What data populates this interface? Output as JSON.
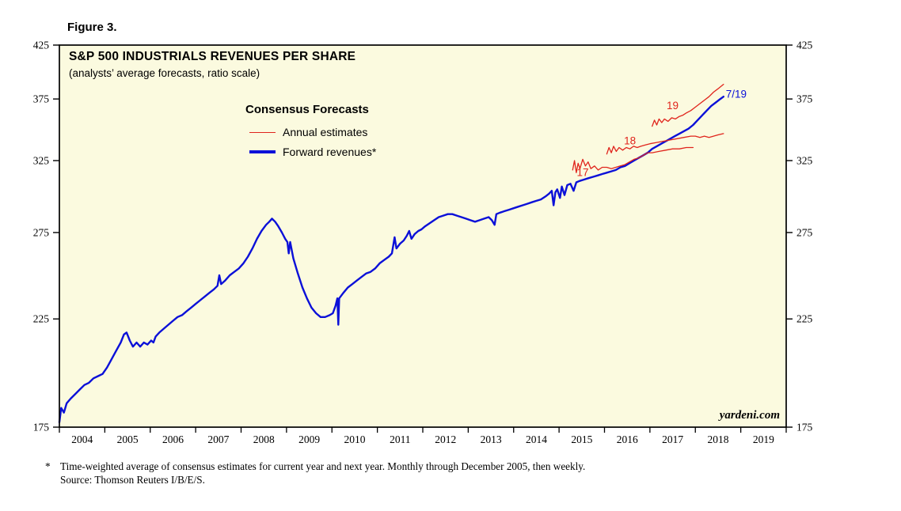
{
  "figure_label": "Figure 3.",
  "chart": {
    "title": "S&P 500 INDUSTRIALS REVENUES PER SHARE",
    "subtitle": "(analysts’ average forecasts, ratio scale)",
    "background": "#fbfadf",
    "colors": {
      "annual_estimates": "#e0241c",
      "forward_revenues": "#0b10d8"
    },
    "legend": {
      "title": "Consensus Forecasts",
      "items": [
        {
          "label": "Annual estimates"
        },
        {
          "label": "Forward revenues*"
        }
      ]
    },
    "watermark": "yardeni.com"
  },
  "chart_data": {
    "type": "line",
    "title": "S&P 500 INDUSTRIALS REVENUES PER SHARE",
    "subtitle": "(analysts’ average forecasts, ratio scale)",
    "x_axis": {
      "range": [
        2004,
        2020
      ],
      "tick_labels": [
        "2004",
        "2005",
        "2006",
        "2007",
        "2008",
        "2009",
        "2010",
        "2011",
        "2012",
        "2013",
        "2014",
        "2015",
        "2016",
        "2017",
        "2018",
        "2019"
      ]
    },
    "y_axis": {
      "scale": "log (ratio scale)",
      "range": [
        175,
        425
      ],
      "ticks": [
        425,
        375,
        325,
        275,
        225,
        175
      ],
      "sides": [
        "left",
        "right"
      ]
    },
    "series": [
      {
        "id": "forward-revenues",
        "name": "Forward revenues*",
        "color": "#0b10d8",
        "stroke_width": 2.4,
        "points": [
          [
            2004.0,
            177
          ],
          [
            2004.04,
            183
          ],
          [
            2004.1,
            181
          ],
          [
            2004.16,
            185
          ],
          [
            2004.25,
            187
          ],
          [
            2004.35,
            189
          ],
          [
            2004.45,
            191
          ],
          [
            2004.55,
            193
          ],
          [
            2004.65,
            194
          ],
          [
            2004.75,
            196
          ],
          [
            2004.85,
            197
          ],
          [
            2004.95,
            198
          ],
          [
            2005.05,
            201
          ],
          [
            2005.15,
            205
          ],
          [
            2005.25,
            209
          ],
          [
            2005.35,
            213
          ],
          [
            2005.42,
            217
          ],
          [
            2005.48,
            218
          ],
          [
            2005.55,
            214
          ],
          [
            2005.62,
            211
          ],
          [
            2005.7,
            213
          ],
          [
            2005.78,
            211
          ],
          [
            2005.86,
            213
          ],
          [
            2005.94,
            212
          ],
          [
            2006.02,
            214
          ],
          [
            2006.07,
            213
          ],
          [
            2006.12,
            216
          ],
          [
            2006.2,
            218
          ],
          [
            2006.3,
            220
          ],
          [
            2006.4,
            222
          ],
          [
            2006.5,
            224
          ],
          [
            2006.6,
            226
          ],
          [
            2006.7,
            227
          ],
          [
            2006.8,
            229
          ],
          [
            2006.9,
            231
          ],
          [
            2007.0,
            233
          ],
          [
            2007.1,
            235
          ],
          [
            2007.2,
            237
          ],
          [
            2007.3,
            239
          ],
          [
            2007.4,
            241
          ],
          [
            2007.48,
            243
          ],
          [
            2007.52,
            249
          ],
          [
            2007.56,
            244
          ],
          [
            2007.65,
            246
          ],
          [
            2007.75,
            249
          ],
          [
            2007.85,
            251
          ],
          [
            2007.95,
            253
          ],
          [
            2008.05,
            256
          ],
          [
            2008.15,
            260
          ],
          [
            2008.25,
            265
          ],
          [
            2008.35,
            271
          ],
          [
            2008.45,
            276
          ],
          [
            2008.55,
            280
          ],
          [
            2008.62,
            282
          ],
          [
            2008.68,
            284
          ],
          [
            2008.75,
            282
          ],
          [
            2008.82,
            279
          ],
          [
            2008.9,
            275
          ],
          [
            2008.97,
            271
          ],
          [
            2009.02,
            269
          ],
          [
            2009.05,
            262
          ],
          [
            2009.08,
            269
          ],
          [
            2009.15,
            259
          ],
          [
            2009.25,
            250
          ],
          [
            2009.35,
            242
          ],
          [
            2009.45,
            236
          ],
          [
            2009.55,
            231
          ],
          [
            2009.65,
            228
          ],
          [
            2009.75,
            226
          ],
          [
            2009.85,
            226
          ],
          [
            2009.95,
            227
          ],
          [
            2010.02,
            228
          ],
          [
            2010.08,
            232
          ],
          [
            2010.12,
            236
          ],
          [
            2010.14,
            222
          ],
          [
            2010.16,
            236
          ],
          [
            2010.25,
            239
          ],
          [
            2010.35,
            242
          ],
          [
            2010.45,
            244
          ],
          [
            2010.55,
            246
          ],
          [
            2010.65,
            248
          ],
          [
            2010.75,
            250
          ],
          [
            2010.85,
            251
          ],
          [
            2010.95,
            253
          ],
          [
            2011.05,
            256
          ],
          [
            2011.15,
            258
          ],
          [
            2011.25,
            260
          ],
          [
            2011.32,
            262
          ],
          [
            2011.38,
            272
          ],
          [
            2011.42,
            265
          ],
          [
            2011.5,
            268
          ],
          [
            2011.58,
            270
          ],
          [
            2011.65,
            273
          ],
          [
            2011.7,
            276
          ],
          [
            2011.75,
            271
          ],
          [
            2011.82,
            274
          ],
          [
            2011.9,
            276
          ],
          [
            2011.97,
            277
          ],
          [
            2012.05,
            279
          ],
          [
            2012.15,
            281
          ],
          [
            2012.25,
            283
          ],
          [
            2012.35,
            285
          ],
          [
            2012.45,
            286
          ],
          [
            2012.55,
            287
          ],
          [
            2012.65,
            287
          ],
          [
            2012.75,
            286
          ],
          [
            2012.85,
            285
          ],
          [
            2012.95,
            284
          ],
          [
            2013.05,
            283
          ],
          [
            2013.15,
            282
          ],
          [
            2013.25,
            283
          ],
          [
            2013.35,
            284
          ],
          [
            2013.45,
            285
          ],
          [
            2013.52,
            283
          ],
          [
            2013.58,
            280
          ],
          [
            2013.62,
            287
          ],
          [
            2013.7,
            288
          ],
          [
            2013.8,
            289
          ],
          [
            2013.9,
            290
          ],
          [
            2014.0,
            291
          ],
          [
            2014.1,
            292
          ],
          [
            2014.2,
            293
          ],
          [
            2014.3,
            294
          ],
          [
            2014.4,
            295
          ],
          [
            2014.5,
            296
          ],
          [
            2014.6,
            297
          ],
          [
            2014.7,
            299
          ],
          [
            2014.78,
            301
          ],
          [
            2014.84,
            303
          ],
          [
            2014.88,
            293
          ],
          [
            2014.92,
            302
          ],
          [
            2014.96,
            304
          ],
          [
            2015.02,
            298
          ],
          [
            2015.06,
            306
          ],
          [
            2015.12,
            300
          ],
          [
            2015.18,
            307
          ],
          [
            2015.25,
            308
          ],
          [
            2015.32,
            303
          ],
          [
            2015.38,
            309
          ],
          [
            2015.45,
            310
          ],
          [
            2015.55,
            311
          ],
          [
            2015.65,
            312
          ],
          [
            2015.75,
            313
          ],
          [
            2015.85,
            314
          ],
          [
            2015.95,
            315
          ],
          [
            2016.05,
            316
          ],
          [
            2016.15,
            317
          ],
          [
            2016.25,
            318
          ],
          [
            2016.35,
            320
          ],
          [
            2016.45,
            321
          ],
          [
            2016.55,
            323
          ],
          [
            2016.65,
            325
          ],
          [
            2016.75,
            327
          ],
          [
            2016.85,
            329
          ],
          [
            2016.95,
            331
          ],
          [
            2017.05,
            334
          ],
          [
            2017.15,
            336
          ],
          [
            2017.25,
            338
          ],
          [
            2017.35,
            340
          ],
          [
            2017.45,
            342
          ],
          [
            2017.55,
            344
          ],
          [
            2017.65,
            346
          ],
          [
            2017.75,
            348
          ],
          [
            2017.85,
            350
          ],
          [
            2017.95,
            353
          ],
          [
            2018.05,
            357
          ],
          [
            2018.15,
            361
          ],
          [
            2018.25,
            365
          ],
          [
            2018.35,
            369
          ],
          [
            2018.45,
            372
          ],
          [
            2018.55,
            375
          ],
          [
            2018.62,
            377
          ]
        ]
      },
      {
        "id": "annual-estimate-2017",
        "name": "Annual estimates (2017)",
        "color": "#e0241c",
        "stroke_width": 1.3,
        "points": [
          [
            2015.3,
            318
          ],
          [
            2015.34,
            325
          ],
          [
            2015.38,
            316
          ],
          [
            2015.42,
            323
          ],
          [
            2015.46,
            319
          ],
          [
            2015.52,
            326
          ],
          [
            2015.58,
            321
          ],
          [
            2015.64,
            324
          ],
          [
            2015.7,
            319
          ],
          [
            2015.78,
            321
          ],
          [
            2015.86,
            318
          ],
          [
            2015.95,
            320
          ],
          [
            2016.05,
            320
          ],
          [
            2016.15,
            319
          ],
          [
            2016.25,
            320
          ],
          [
            2016.35,
            321
          ],
          [
            2016.45,
            322
          ],
          [
            2016.55,
            324
          ],
          [
            2016.65,
            326
          ],
          [
            2016.75,
            327
          ],
          [
            2016.85,
            329
          ],
          [
            2016.95,
            331
          ],
          [
            2017.05,
            331
          ],
          [
            2017.2,
            332
          ],
          [
            2017.35,
            333
          ],
          [
            2017.5,
            334
          ],
          [
            2017.65,
            334
          ],
          [
            2017.8,
            335
          ],
          [
            2017.95,
            335
          ]
        ]
      },
      {
        "id": "annual-estimate-2018",
        "name": "Annual estimates (2018)",
        "color": "#e0241c",
        "stroke_width": 1.3,
        "points": [
          [
            2016.05,
            330
          ],
          [
            2016.1,
            335
          ],
          [
            2016.15,
            331
          ],
          [
            2016.2,
            336
          ],
          [
            2016.26,
            332
          ],
          [
            2016.32,
            335
          ],
          [
            2016.4,
            333
          ],
          [
            2016.48,
            335
          ],
          [
            2016.56,
            334
          ],
          [
            2016.64,
            336
          ],
          [
            2016.72,
            335
          ],
          [
            2016.8,
            336
          ],
          [
            2016.9,
            337
          ],
          [
            2017.0,
            338
          ],
          [
            2017.15,
            339
          ],
          [
            2017.3,
            340
          ],
          [
            2017.45,
            341
          ],
          [
            2017.6,
            342
          ],
          [
            2017.75,
            343
          ],
          [
            2017.9,
            344
          ],
          [
            2018.0,
            344
          ],
          [
            2018.1,
            343
          ],
          [
            2018.2,
            344
          ],
          [
            2018.3,
            343
          ],
          [
            2018.4,
            344
          ],
          [
            2018.5,
            345
          ],
          [
            2018.62,
            346
          ]
        ]
      },
      {
        "id": "annual-estimate-2019",
        "name": "Annual estimates (2019)",
        "color": "#e0241c",
        "stroke_width": 1.3,
        "points": [
          [
            2017.05,
            352
          ],
          [
            2017.1,
            357
          ],
          [
            2017.15,
            353
          ],
          [
            2017.2,
            358
          ],
          [
            2017.26,
            355
          ],
          [
            2017.32,
            358
          ],
          [
            2017.4,
            356
          ],
          [
            2017.48,
            359
          ],
          [
            2017.56,
            358
          ],
          [
            2017.64,
            360
          ],
          [
            2017.72,
            361
          ],
          [
            2017.8,
            363
          ],
          [
            2017.9,
            365
          ],
          [
            2018.0,
            368
          ],
          [
            2018.1,
            371
          ],
          [
            2018.2,
            374
          ],
          [
            2018.3,
            377
          ],
          [
            2018.4,
            381
          ],
          [
            2018.5,
            384
          ],
          [
            2018.56,
            386
          ],
          [
            2018.62,
            388
          ]
        ]
      }
    ],
    "annotations": [
      {
        "text": "17",
        "x": 2015.52,
        "value": 316,
        "color": "#e0241c",
        "bold": false
      },
      {
        "text": "18",
        "x": 2016.56,
        "value": 340,
        "color": "#e0241c",
        "bold": false
      },
      {
        "text": "19",
        "x": 2017.5,
        "value": 369,
        "color": "#e0241c",
        "bold": false
      },
      {
        "text": "7/19",
        "x": 2018.9,
        "value": 379,
        "color": "#0b10d8",
        "bold": false
      }
    ]
  },
  "footnote": {
    "marker": "*",
    "text": "Time-weighted average of consensus estimates for current year and next year. Monthly through December 2005, then weekly.",
    "source": "Source: Thomson Reuters I/B/E/S."
  }
}
